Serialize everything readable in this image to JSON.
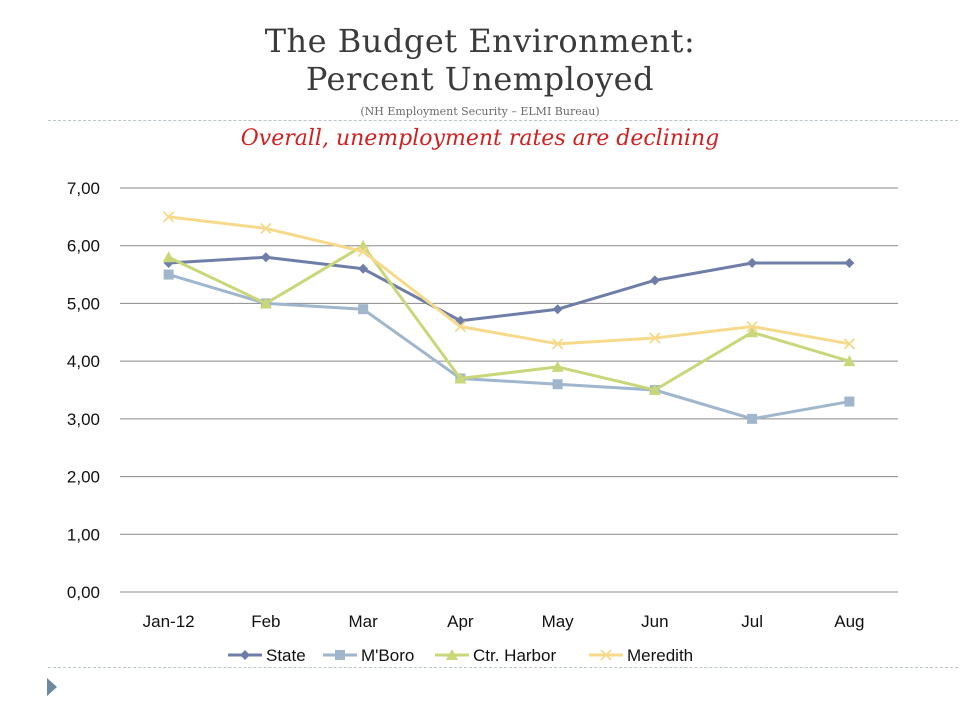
{
  "slide": {
    "title_line1": "The Budget Environment:",
    "title_line2": "Percent Unemployed",
    "source": "(NH Employment Security – ELMI Bureau)",
    "subtitle": "Overall, unemployment rates are declining",
    "colors": {
      "title": "#3b3b3b",
      "subtitle": "#d32020",
      "rule": "#b9c6cc",
      "bullet": "#6b8aa0"
    }
  },
  "chart_data": {
    "type": "line",
    "categories": [
      "Jan-12",
      "Feb",
      "Mar",
      "Apr",
      "May",
      "Jun",
      "Jul",
      "Aug"
    ],
    "y_tick_labels": [
      "0,00",
      "1,00",
      "2,00",
      "3,00",
      "4,00",
      "5,00",
      "6,00",
      "7,00"
    ],
    "ylim": [
      0,
      7
    ],
    "y_step": 1,
    "grid": true,
    "legend_position": "bottom",
    "series": [
      {
        "name": "State",
        "color": "#6f7ea8",
        "marker": "diamond",
        "values": [
          5.7,
          5.8,
          5.6,
          4.7,
          4.9,
          5.4,
          5.7,
          5.7
        ]
      },
      {
        "name": "M'Boro",
        "color": "#9fb6cc",
        "marker": "square",
        "values": [
          5.5,
          5.0,
          4.9,
          3.7,
          3.6,
          3.5,
          3.0,
          3.3
        ]
      },
      {
        "name": "Ctr. Harbor",
        "color": "#c9d77a",
        "marker": "triangle",
        "values": [
          5.8,
          5.0,
          6.0,
          3.7,
          3.9,
          3.5,
          4.5,
          4.0
        ]
      },
      {
        "name": "Meredith",
        "color": "#f6d98a",
        "marker": "x",
        "values": [
          6.5,
          6.3,
          5.9,
          4.6,
          4.3,
          4.4,
          4.6,
          4.3
        ]
      }
    ]
  }
}
